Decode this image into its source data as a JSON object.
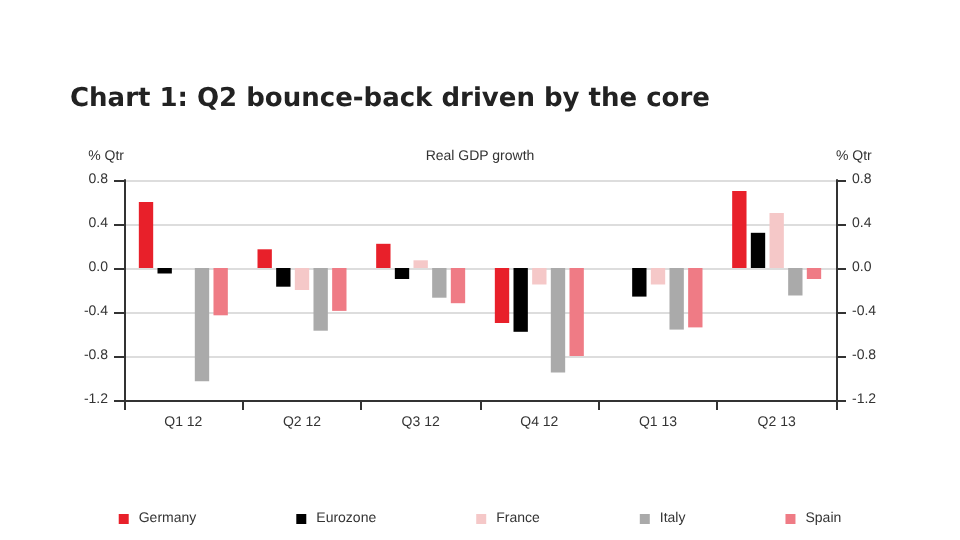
{
  "chart_data": {
    "type": "bar",
    "title": "Chart 1: Q2 bounce-back driven by the core",
    "subtitle": "Real GDP growth",
    "ylabel": "% Qtr",
    "y2label": "% Qtr",
    "categories": [
      "Q1 12",
      "Q2 12",
      "Q3 12",
      "Q4 12",
      "Q1 13",
      "Q2 13"
    ],
    "series": [
      {
        "name": "Germany",
        "color": "#e8202a",
        "values": [
          0.6,
          0.17,
          0.22,
          -0.5,
          0,
          0.7
        ]
      },
      {
        "name": "Eurozone",
        "color": "#000000",
        "values": [
          -0.05,
          -0.17,
          -0.1,
          -0.58,
          -0.26,
          0.32
        ]
      },
      {
        "name": "France",
        "color": "#f5c8c8",
        "values": [
          0,
          -0.2,
          0.07,
          -0.15,
          -0.15,
          0.5
        ]
      },
      {
        "name": "Italy",
        "color": "#aaaaaa",
        "values": [
          -1.03,
          -0.57,
          -0.27,
          -0.95,
          -0.56,
          -0.25
        ]
      },
      {
        "name": "Spain",
        "color": "#ef7b85",
        "values": [
          -0.43,
          -0.39,
          -0.32,
          -0.8,
          -0.54,
          -0.1
        ]
      }
    ],
    "ylim": [
      -1.2,
      0.8
    ],
    "yticks": [
      {
        "value": -1.2,
        "label": "-1.2"
      },
      {
        "value": -0.8,
        "label": "-0.8"
      },
      {
        "value": -0.4,
        "label": "-0.4"
      },
      {
        "value": 0,
        "label": "0.0"
      },
      {
        "value": 0.4,
        "label": "0.4"
      },
      {
        "value": 0.8,
        "label": "0.8"
      }
    ],
    "y2lim": [
      -1.2,
      0.8
    ],
    "y2ticks": [
      {
        "value": -1.2,
        "label": "-1.2"
      },
      {
        "value": -0.8,
        "label": "-0.8"
      },
      {
        "value": -0.4,
        "label": "-0.4"
      },
      {
        "value": 0,
        "label": "0.0"
      },
      {
        "value": 0.4,
        "label": "0.4"
      },
      {
        "value": 0.8,
        "label": "0.8"
      }
    ],
    "grid": "y",
    "legend": "bottom"
  }
}
